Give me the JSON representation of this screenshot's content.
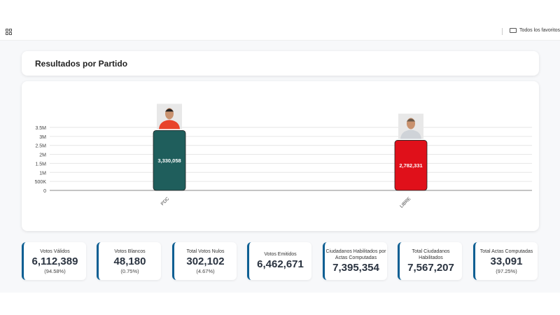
{
  "header": {
    "favorites_label": "Todos los favoritos"
  },
  "page": {
    "title": "Resultados por Partido"
  },
  "chart_data": {
    "type": "bar",
    "categories": [
      "PDC",
      "LIBRE"
    ],
    "values": [
      3330058,
      2782331
    ],
    "value_labels": [
      "3,330,058",
      "2,782,331"
    ],
    "colors": [
      "#1f5e5c",
      "#e0101a"
    ],
    "ylim": [
      0,
      3500000
    ],
    "yticks": [
      0,
      500000,
      1000000,
      1500000,
      2000000,
      2500000,
      3000000,
      3500000
    ],
    "ytick_labels": [
      "0",
      "500K",
      "1M",
      "1.5M",
      "2M",
      "2.5M",
      "3M",
      "3.5M"
    ],
    "grid": true
  },
  "stats": [
    {
      "label": "Votos Válidos",
      "value": "6,112,389",
      "pct": "(94.58%)"
    },
    {
      "label": "Votos Blancos",
      "value": "48,180",
      "pct": "(0.75%)"
    },
    {
      "label": "Total Votos Nulos",
      "value": "302,102",
      "pct": "(4.67%)"
    },
    {
      "label": "Votos Emitidos",
      "value": "6,462,671"
    },
    {
      "label": "Ciudadanos Habilitados por Actas Computadas",
      "value": "7,395,354"
    },
    {
      "label": "Total Ciudadanos Habilitados",
      "value": "7,567,207"
    },
    {
      "label": "Total Actas Computadas",
      "value": "33,091",
      "pct": "(97.25%)"
    }
  ]
}
